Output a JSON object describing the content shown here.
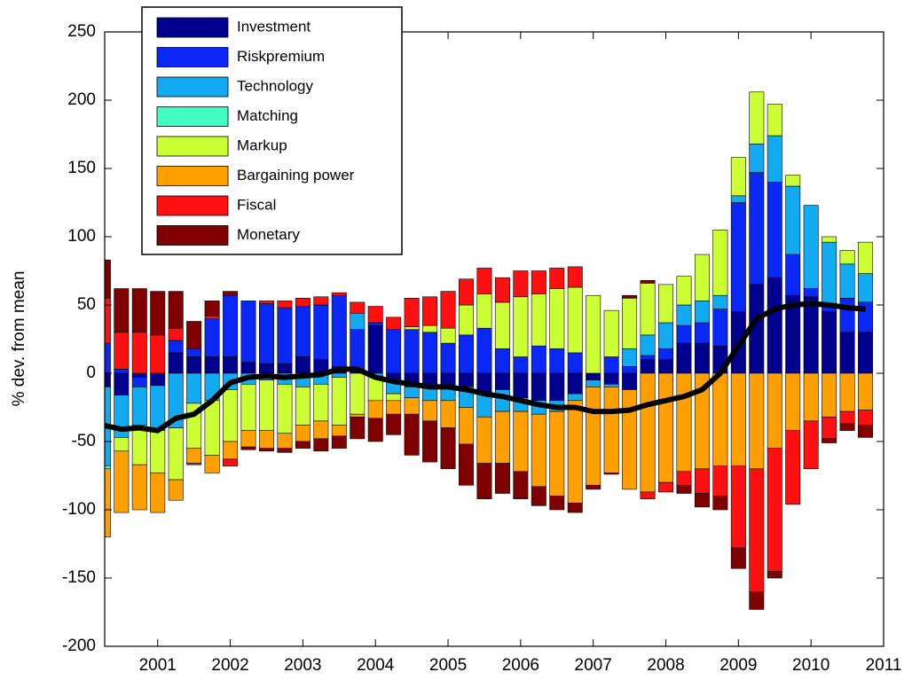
{
  "chart_data": {
    "type": "bar",
    "stacked": true,
    "y_label": "% dev. from mean",
    "x": [
      2000.25,
      2000.5,
      2000.75,
      2001,
      2001.25,
      2001.5,
      2001.75,
      2002,
      2002.25,
      2002.5,
      2002.75,
      2003,
      2003.25,
      2003.5,
      2003.75,
      2004,
      2004.25,
      2004.5,
      2004.75,
      2005,
      2005.25,
      2005.5,
      2005.75,
      2006,
      2006.25,
      2006.5,
      2006.75,
      2007,
      2007.25,
      2007.5,
      2007.75,
      2008,
      2008.25,
      2008.5,
      2008.75,
      2009,
      2009.25,
      2009.5,
      2009.75,
      2010,
      2010.25,
      2010.5,
      2010.75
    ],
    "xlim": [
      2000.27,
      2011
    ],
    "xticks": [
      2001,
      2002,
      2003,
      2004,
      2005,
      2006,
      2007,
      2008,
      2009,
      2010,
      2011
    ],
    "ylim": [
      -200,
      250
    ],
    "yticks": [
      -200,
      -150,
      -100,
      -50,
      0,
      50,
      100,
      150,
      200,
      250
    ],
    "legend": "top-left",
    "series": [
      {
        "name": "Investment",
        "color": "#00008f",
        "values": [
          -10,
          -16,
          -3,
          -9,
          15,
          12,
          12,
          12,
          8,
          7,
          7,
          12,
          10,
          5,
          3,
          35,
          -5,
          -10,
          -8,
          -10,
          -10,
          -15,
          -12,
          -18,
          -20,
          -20,
          -15,
          -5,
          -8,
          -12,
          10,
          10,
          22,
          22,
          20,
          45,
          65,
          70,
          57,
          56,
          45,
          30,
          30
        ]
      },
      {
        "name": "Riskpremium",
        "color": "#0a28f5",
        "values": [
          22,
          3,
          -7,
          0,
          9,
          6,
          28,
          45,
          45,
          44,
          41,
          37,
          40,
          52,
          29,
          2,
          32,
          32,
          30,
          22,
          28,
          33,
          18,
          12,
          20,
          18,
          15,
          0,
          12,
          5,
          3,
          8,
          13,
          15,
          27,
          80,
          82,
          70,
          30,
          6,
          5,
          25,
          22
        ]
      },
      {
        "name": "Technology",
        "color": "#12aaf0",
        "values": [
          -58,
          -31,
          -28,
          -33,
          -40,
          -22,
          -20,
          -12,
          -8,
          -5,
          -8,
          -10,
          -8,
          -3,
          12,
          -2,
          -10,
          -8,
          -12,
          -10,
          -15,
          -17,
          -16,
          -10,
          -10,
          -8,
          -5,
          -5,
          -2,
          13,
          15,
          19,
          15,
          16,
          10,
          5,
          21,
          34,
          50,
          61,
          46,
          25,
          21
        ]
      },
      {
        "name": "Matching",
        "color": "#40ffc0",
        "values": [
          -2,
          0,
          0,
          0,
          0,
          0,
          0,
          0,
          0,
          0,
          0,
          0,
          0,
          0,
          0,
          0,
          0,
          0,
          0,
          0,
          0,
          0,
          0,
          0,
          0,
          0,
          0,
          0,
          0,
          0,
          0,
          0,
          0,
          0,
          0,
          0,
          0,
          0,
          0,
          0,
          0,
          0,
          0
        ]
      },
      {
        "name": "Markup",
        "color": "#ccff33",
        "values": [
          0,
          -10,
          -29,
          -31,
          -38,
          -33,
          -40,
          -38,
          -34,
          -37,
          -36,
          -28,
          -27,
          -35,
          -30,
          -18,
          -5,
          2,
          5,
          11,
          22,
          25,
          34,
          44,
          38,
          44,
          48,
          57,
          34,
          37,
          38,
          28,
          21,
          34,
          48,
          28,
          38,
          23,
          8,
          0,
          4,
          10,
          23
        ]
      },
      {
        "name": "Bargaining power",
        "color": "#ffa000",
        "values": [
          -50,
          -45,
          -33,
          -29,
          -15,
          -11,
          -13,
          -13,
          -12,
          -13,
          -11,
          -12,
          -13,
          -8,
          -2,
          -13,
          -10,
          -12,
          -15,
          -20,
          -27,
          -34,
          -38,
          -44,
          -53,
          -62,
          -75,
          -72,
          -63,
          -73,
          -87,
          -80,
          -72,
          -70,
          -68,
          -68,
          -70,
          -55,
          -42,
          -35,
          -32,
          -28,
          -27
        ]
      },
      {
        "name": "Fiscal",
        "color": "#ff1010",
        "values": [
          33,
          27,
          30,
          28,
          9,
          -1,
          2,
          -5,
          0,
          2,
          5,
          6,
          6,
          2,
          8,
          12,
          9,
          21,
          21,
          27,
          19,
          19,
          18,
          19,
          17,
          15,
          15,
          0,
          0,
          0,
          -5,
          -7,
          -10,
          -18,
          -22,
          -60,
          -90,
          -90,
          -54,
          -35,
          -16,
          -9,
          -11
        ]
      },
      {
        "name": "Monetary",
        "color": "#800000",
        "values": [
          28,
          32,
          32,
          32,
          27,
          20,
          11,
          3,
          -2,
          -2,
          -3,
          -5,
          -9,
          -9,
          -16,
          -17,
          -15,
          -30,
          -30,
          -30,
          -30,
          -26,
          -22,
          -20,
          -14,
          -10,
          -7,
          -3,
          -1,
          2,
          2,
          0,
          -6,
          -10,
          -10,
          -15,
          -13,
          -5,
          0,
          0,
          -3,
          -5,
          -9
        ]
      }
    ],
    "line": {
      "color": "#000000",
      "values": [
        -38,
        -41,
        -40,
        -42,
        -33,
        -30,
        -20,
        -7,
        -3,
        -2,
        -3,
        -2,
        -1,
        3,
        3,
        -3,
        -6,
        -8,
        -10,
        -10,
        -12,
        -15,
        -17,
        -20,
        -23,
        -25,
        -25,
        -28,
        -28,
        -27,
        -23,
        -20,
        -17,
        -12,
        0,
        20,
        40,
        47,
        50,
        51,
        50,
        48,
        47
      ]
    }
  }
}
